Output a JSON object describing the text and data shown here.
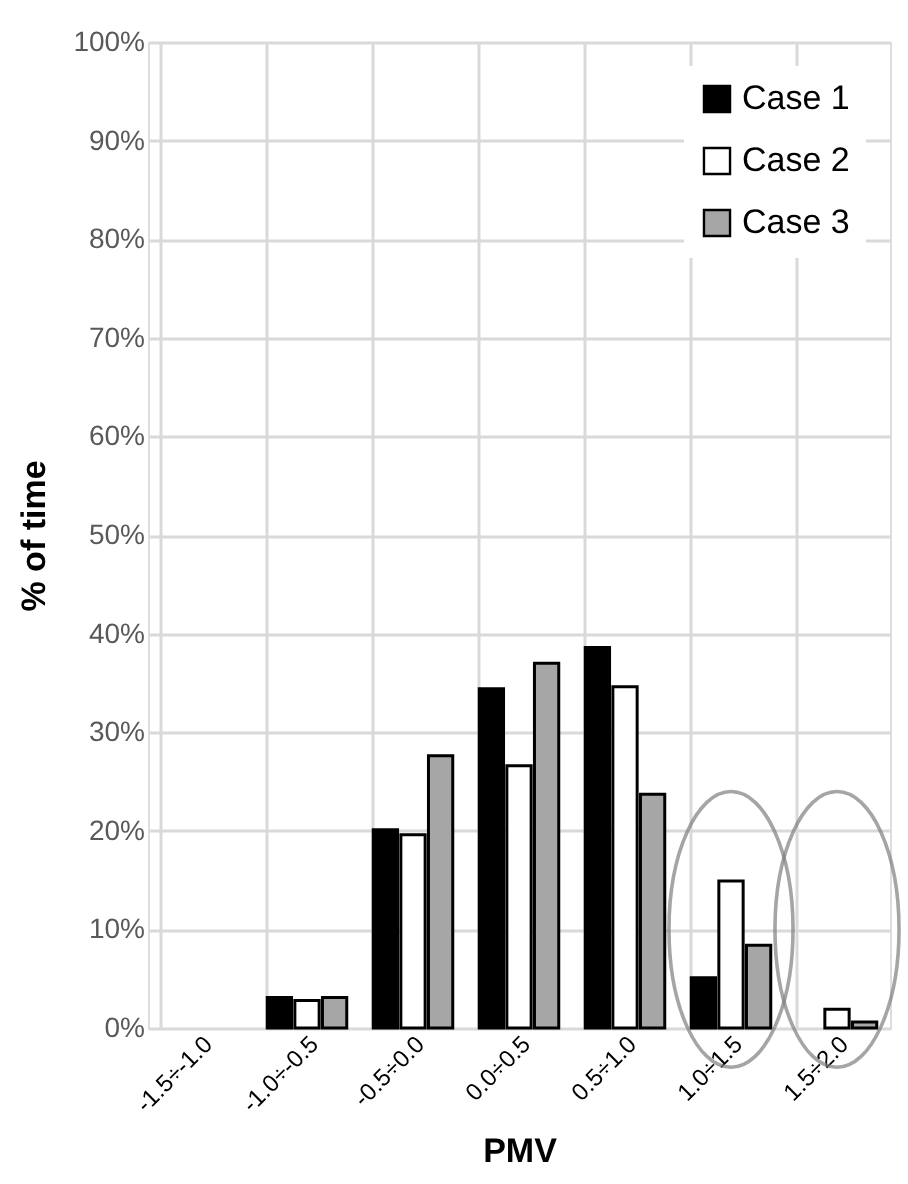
{
  "chart_data": {
    "type": "bar",
    "xlabel": "PMV",
    "ylabel": "% of time",
    "categories": [
      "-1.5÷-1.0",
      "-1.0÷-0.5",
      "-0.5÷0.0",
      "0.0÷0.5",
      "0.5÷1.0",
      "1.0÷1.5",
      "1.5÷2.0"
    ],
    "series": [
      {
        "name": "Case 1",
        "color": "#000000",
        "values": [
          0,
          3.1,
          20.1,
          34.4,
          38.6,
          5.1,
          0
        ]
      },
      {
        "name": "Case 2",
        "color": "#ffffff",
        "values": [
          0,
          2.8,
          19.6,
          26.6,
          34.6,
          14.9,
          1.9
        ]
      },
      {
        "name": "Case 3",
        "color": "#a6a6a6",
        "values": [
          0,
          3.1,
          27.6,
          37.0,
          23.7,
          8.4,
          0.6
        ]
      }
    ],
    "ylim": [
      0,
      100
    ],
    "yticks": [
      {
        "value": 0,
        "label": "0%"
      },
      {
        "value": 10,
        "label": "10%"
      },
      {
        "value": 20,
        "label": "20%"
      },
      {
        "value": 30,
        "label": "30%"
      },
      {
        "value": 40,
        "label": "40%"
      },
      {
        "value": 50,
        "label": "50%"
      },
      {
        "value": 60,
        "label": "60%"
      },
      {
        "value": 70,
        "label": "70%"
      },
      {
        "value": 80,
        "label": "80%"
      },
      {
        "value": 90,
        "label": "90%"
      },
      {
        "value": 100,
        "label": "100%"
      }
    ],
    "grid": true,
    "legend": "top right"
  }
}
